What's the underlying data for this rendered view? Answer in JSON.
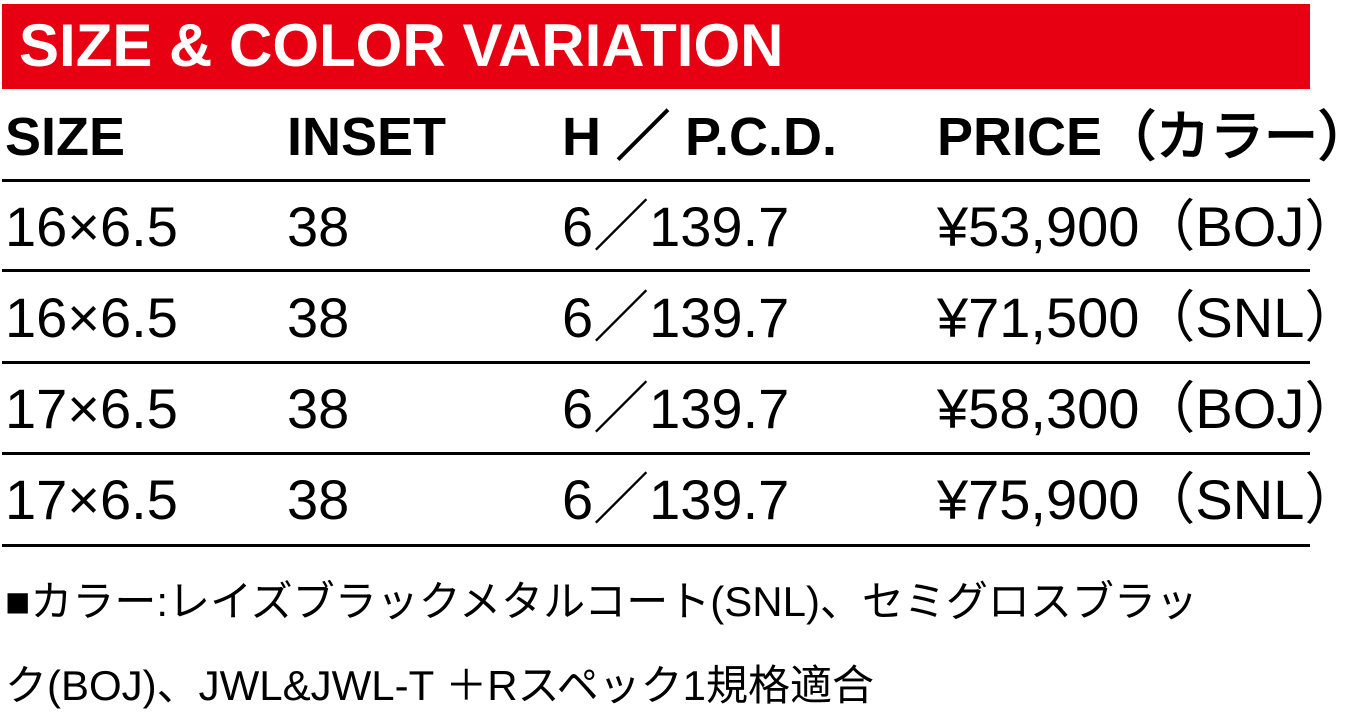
{
  "title": "SIZE & COLOR VARIATION",
  "accent_color": "#e60012",
  "table": {
    "headers": [
      "SIZE",
      "INSET",
      "H ／ P.C.D.",
      "PRICE（カラー）"
    ],
    "rows": [
      [
        "16×6.5",
        "38",
        "6／139.7",
        "¥53,900（BOJ）"
      ],
      [
        "16×6.5",
        "38",
        "6／139.7",
        "¥71,500（SNL）"
      ],
      [
        "17×6.5",
        "38",
        "6／139.7",
        "¥58,300（BOJ）"
      ],
      [
        "17×6.5",
        "38",
        "6／139.7",
        "¥75,900（SNL）"
      ]
    ]
  },
  "notes": [
    "■カラー:レイズブラックメタルコート(SNL)、セミグロスブラッ",
    "ク(BOJ)、JWL&JWL-T ＋Rスペック1規格適合"
  ]
}
